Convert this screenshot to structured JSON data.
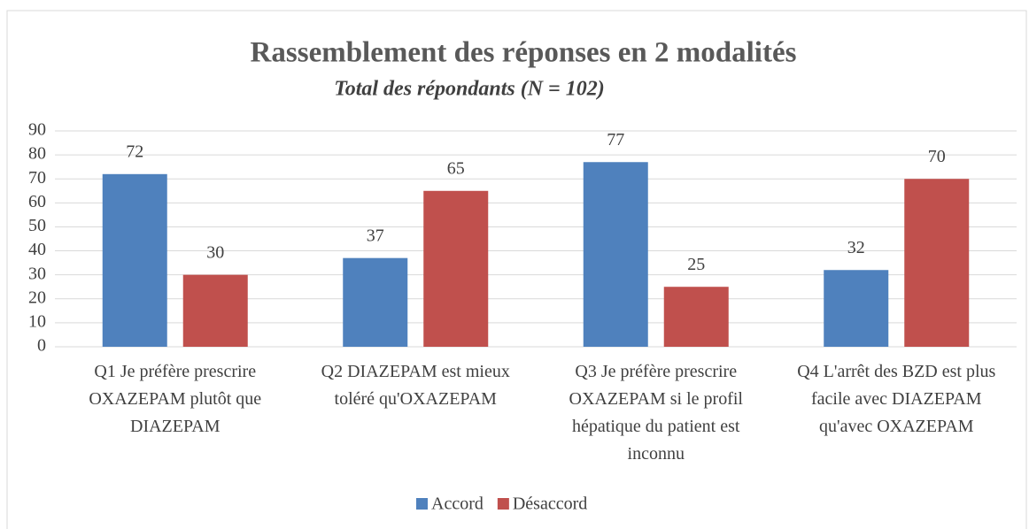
{
  "chart_data": {
    "type": "bar",
    "title": "Rassemblement des réponses en 2 modalités",
    "subtitle": "Total des répondants (N = 102)",
    "categories": [
      "Q1 Je préfère prescrire OXAZEPAM plutôt que DIAZEPAM",
      "Q2 DIAZEPAM est mieux toléré qu'OXAZEPAM",
      "Q3 Je préfère prescrire OXAZEPAM si le profil hépatique du patient est inconnu",
      "Q4 L'arrêt des BZD est plus facile avec DIAZEPAM qu'avec OXAZEPAM"
    ],
    "series": [
      {
        "name": "Accord",
        "color": "#4f81bd",
        "values": [
          72,
          37,
          77,
          32
        ]
      },
      {
        "name": "Désaccord",
        "color": "#c0504d",
        "values": [
          30,
          65,
          25,
          70
        ]
      }
    ],
    "ylim": [
      0,
      90
    ],
    "yticks": [
      0,
      10,
      20,
      30,
      40,
      50,
      60,
      70,
      80,
      90
    ],
    "grid": true,
    "legend": "bottom"
  }
}
